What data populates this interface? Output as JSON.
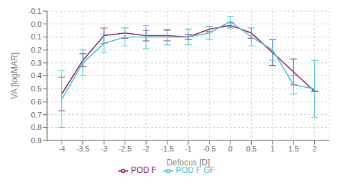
{
  "chart_data": {
    "type": "line",
    "x_label": "Defocus [D]",
    "y_label": "VA [logMAR]",
    "x": [
      -4,
      -3.5,
      -3,
      -2.5,
      -2,
      -1.5,
      -1,
      -0.5,
      0,
      0.5,
      1,
      1.5,
      2
    ],
    "series": [
      {
        "name": "POD F",
        "color": "#9B1B6E",
        "values": [
          0.54,
          0.28,
          0.09,
          0.07,
          0.09,
          0.09,
          0.1,
          0.04,
          0.01,
          0.07,
          0.22,
          0.37,
          0.52
        ],
        "error_lower": [
          0.13,
          0.05,
          0.06,
          0.04,
          0.04,
          0.04,
          0.02,
          0.02,
          0.02,
          0.04,
          0.1,
          0.1,
          0.0
        ],
        "error_upper": [
          0.13,
          0.05,
          0.06,
          0.04,
          0.04,
          0.04,
          0.02,
          0.02,
          0.02,
          0.04,
          0.1,
          0.1,
          0.0
        ]
      },
      {
        "name": "POD F GF",
        "color": "#40C8D8",
        "values": [
          0.58,
          0.3,
          0.15,
          0.1,
          0.1,
          0.1,
          0.1,
          0.07,
          -0.02,
          0.1,
          0.2,
          0.47,
          0.5
        ],
        "error_lower": [
          0.22,
          0.1,
          0.07,
          0.07,
          0.09,
          0.06,
          0.06,
          0.05,
          0.04,
          0.07,
          0.08,
          0.07,
          0.22
        ],
        "error_upper": [
          0.22,
          0.1,
          0.07,
          0.07,
          0.09,
          0.06,
          0.06,
          0.05,
          0.04,
          0.07,
          0.08,
          0.07,
          0.22
        ]
      }
    ],
    "xlim": [
      -4.35,
      2.35
    ],
    "xticks": [
      -4,
      -3.5,
      -3,
      -2.5,
      -2,
      -1.5,
      -1,
      -0.5,
      0,
      0.5,
      1,
      1.5,
      2
    ],
    "ylim": [
      0.9,
      -0.1
    ],
    "yticks": [
      -0.1,
      {
        "value": 0,
        "label": "0.0"
      },
      0.1,
      0.2,
      0.3,
      0.4,
      0.5,
      0.6,
      0.7,
      0.8,
      0.9
    ],
    "grid": true,
    "legend": "bottom"
  }
}
